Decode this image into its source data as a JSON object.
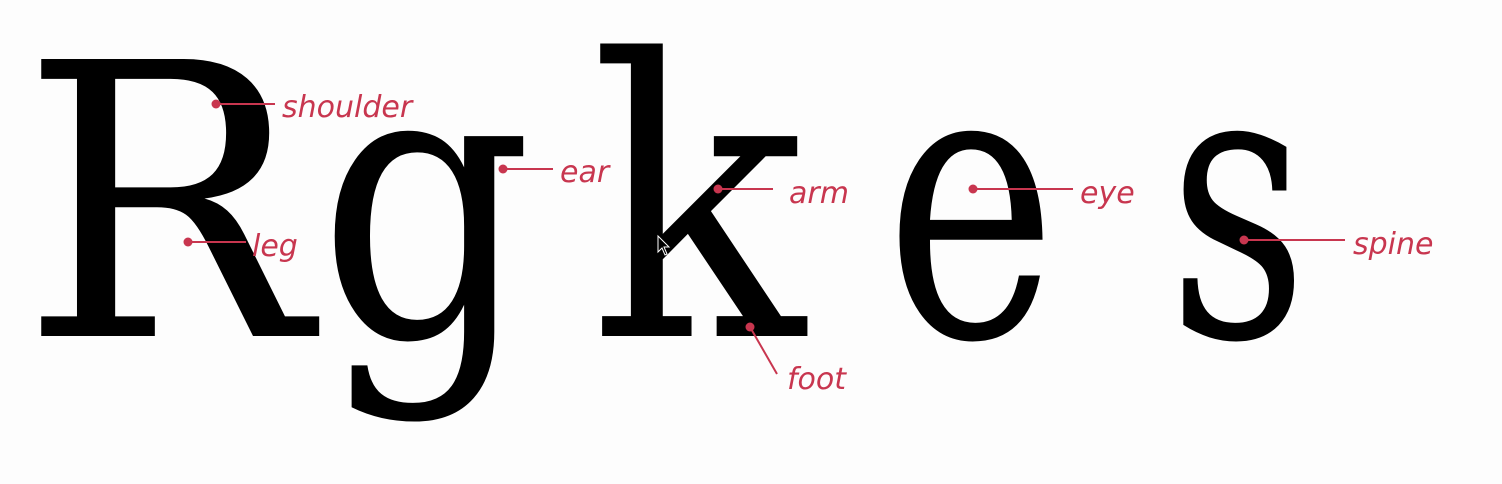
{
  "colors": {
    "glyph": "#000000",
    "annotation": "#c8364f",
    "background": "#fdfdfd"
  },
  "letters": [
    "R",
    "g",
    "k",
    "e",
    "s"
  ],
  "annotations": {
    "shoulder": "shoulder",
    "leg": "leg",
    "ear": "ear",
    "arm": "arm",
    "foot": "foot",
    "eye": "eye",
    "spine": "spine"
  }
}
